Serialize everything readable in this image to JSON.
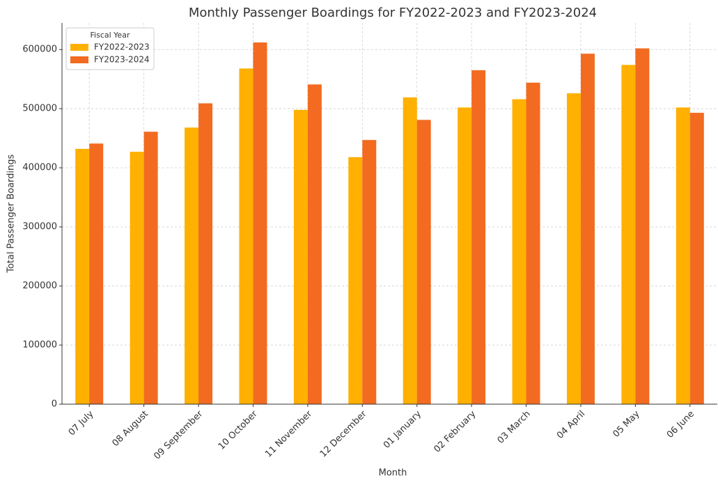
{
  "chart_data": {
    "type": "bar",
    "title": "Monthly Passenger Boardings for FY2022-2023 and FY2023-2024",
    "x_label": "Month",
    "y_label": "Total Passenger Boardings",
    "categories": [
      "07 July",
      "08 August",
      "09 September",
      "10 October",
      "11 November",
      "12 December",
      "01 January",
      "02 February",
      "03 March",
      "04 April",
      "05 May",
      "06 June"
    ],
    "series": [
      {
        "name": "FY2022-2023",
        "color": "#ffb000",
        "values": [
          432000,
          427000,
          468000,
          568000,
          498000,
          418000,
          519000,
          502000,
          516000,
          526000,
          574000,
          502000
        ]
      },
      {
        "name": "FY2023-2024",
        "color": "#f26b21",
        "values": [
          441000,
          461000,
          509000,
          612000,
          541000,
          447000,
          481000,
          565000,
          544000,
          593000,
          602000,
          493000
        ]
      }
    ],
    "legend_title": "Fiscal Year",
    "legend": "upper left",
    "ylim": [
      0,
      645000
    ],
    "yticks": [
      0,
      100000,
      200000,
      300000,
      400000,
      500000,
      600000
    ],
    "grid": true
  }
}
